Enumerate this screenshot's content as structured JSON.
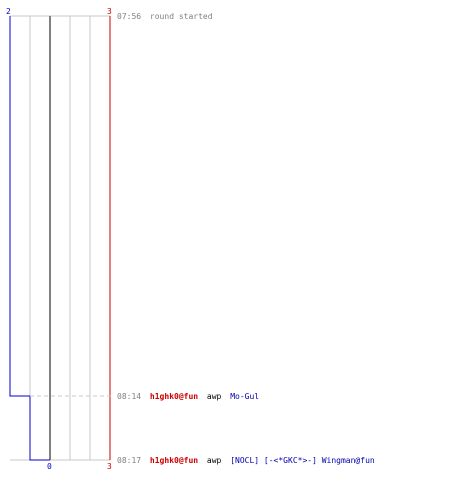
{
  "colors": {
    "team_blue": "#0000cc",
    "team_red": "#cc0000",
    "grid": "#c8c8c8",
    "center_line": "#808080",
    "dashed": "#c8c8c8",
    "time_text": "#808080",
    "player_red": "#cc0000",
    "player_blue": "#0000aa",
    "action_text": "#000000"
  },
  "scores": {
    "left_top": "2",
    "right_top": "3",
    "bottom_center": "0",
    "right_bottom": "3"
  },
  "events": [
    {
      "time": "07:56",
      "text": "round started",
      "type": "system"
    },
    {
      "time": "08:14",
      "attacker": "h1ghk0@fun",
      "action": "awp",
      "victim": "Mo-Gul",
      "type": "kill"
    },
    {
      "time": "08:17",
      "attacker": "h1ghk0@fun",
      "action": "awp",
      "victim": "[NOCL] [-<*GKC*>-] Wingman@fun",
      "type": "kill"
    }
  ]
}
